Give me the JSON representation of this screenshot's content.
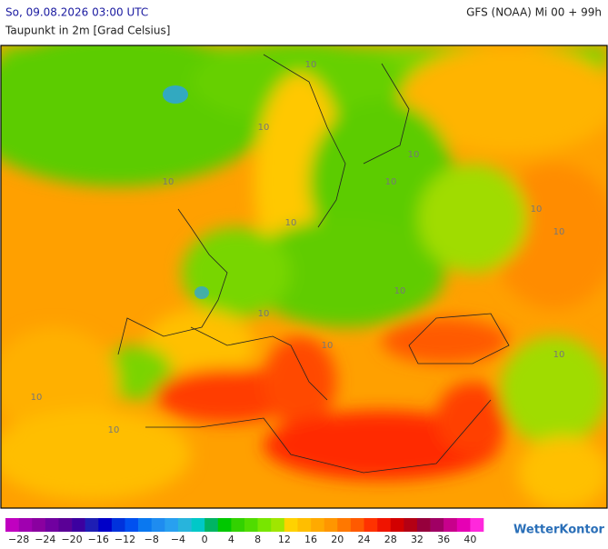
{
  "header": {
    "datetime": "So, 09.08.2026 03:00 UTC",
    "model": "GFS (NOAA) Mi 00 + 99h",
    "subtitle": "Taupunkt in 2m [Grad Celsius]"
  },
  "map": {
    "contour_labels": [
      "10",
      "10",
      "10",
      "10",
      "10",
      "10",
      "10",
      "10",
      "10",
      "10",
      "10",
      "10",
      "10",
      "10"
    ]
  },
  "legend": {
    "range": [
      -30,
      42
    ],
    "colors": [
      "#c000c0",
      "#a000b0",
      "#8a00a0",
      "#7000a0",
      "#5a0096",
      "#3c00a0",
      "#1e1eb4",
      "#0000c8",
      "#0032dc",
      "#0050f0",
      "#0a78f0",
      "#1e8cf0",
      "#28a0f0",
      "#28b4dc",
      "#00c8c8",
      "#00b464",
      "#00c800",
      "#32d200",
      "#50dc00",
      "#78e600",
      "#a0e600",
      "#ffd200",
      "#ffbe00",
      "#ffaa00",
      "#ff9600",
      "#ff7800",
      "#ff5a00",
      "#ff3200",
      "#f01400",
      "#d20000",
      "#b40014",
      "#96003c",
      "#a00064",
      "#c8008c",
      "#e600b4",
      "#ff28dc"
    ],
    "ticks": [
      {
        "value": -28,
        "label": "−28"
      },
      {
        "value": -24,
        "label": "−24"
      },
      {
        "value": -20,
        "label": "−20"
      },
      {
        "value": -16,
        "label": "−16"
      },
      {
        "value": -12,
        "label": "−12"
      },
      {
        "value": -8,
        "label": "−8"
      },
      {
        "value": -4,
        "label": "−4"
      },
      0,
      4,
      8,
      12,
      16,
      20,
      24,
      28,
      32,
      36,
      40
    ]
  },
  "logo": "WetterKontor"
}
